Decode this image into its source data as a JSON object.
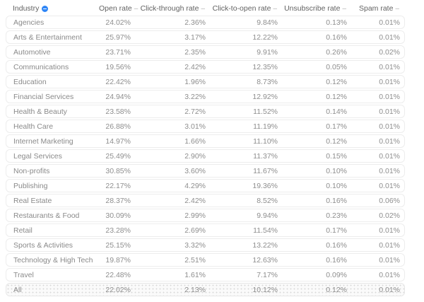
{
  "chart_data": {
    "type": "table",
    "columns": [
      "Industry",
      "Open rate",
      "Click-through rate",
      "Click-to-open rate",
      "Unsubscribe rate",
      "Spam rate"
    ],
    "rows": [
      [
        "Agencies",
        "24.02%",
        "2.36%",
        "9.84%",
        "0.13%",
        "0.01%"
      ],
      [
        "Arts & Entertainment",
        "25.97%",
        "3.17%",
        "12.22%",
        "0.16%",
        "0.01%"
      ],
      [
        "Automotive",
        "23.71%",
        "2.35%",
        "9.91%",
        "0.26%",
        "0.02%"
      ],
      [
        "Communications",
        "19.56%",
        "2.42%",
        "12.35%",
        "0.05%",
        "0.01%"
      ],
      [
        "Education",
        "22.42%",
        "1.96%",
        "8.73%",
        "0.12%",
        "0.01%"
      ],
      [
        "Financial Services",
        "24.94%",
        "3.22%",
        "12.92%",
        "0.12%",
        "0.01%"
      ],
      [
        "Health & Beauty",
        "23.58%",
        "2.72%",
        "11.52%",
        "0.14%",
        "0.01%"
      ],
      [
        "Health Care",
        "26.88%",
        "3.01%",
        "11.19%",
        "0.17%",
        "0.01%"
      ],
      [
        "Internet Marketing",
        "14.97%",
        "1.66%",
        "11.10%",
        "0.12%",
        "0.01%"
      ],
      [
        "Legal Services",
        "25.49%",
        "2.90%",
        "11.37%",
        "0.15%",
        "0.01%"
      ],
      [
        "Non-profits",
        "30.85%",
        "3.60%",
        "11.67%",
        "0.10%",
        "0.01%"
      ],
      [
        "Publishing",
        "22.17%",
        "4.29%",
        "19.36%",
        "0.10%",
        "0.01%"
      ],
      [
        "Real Estate",
        "28.37%",
        "2.42%",
        "8.52%",
        "0.16%",
        "0.06%"
      ],
      [
        "Restaurants & Food",
        "30.09%",
        "2.99%",
        "9.94%",
        "0.23%",
        "0.02%"
      ],
      [
        "Retail",
        "23.28%",
        "2.69%",
        "11.54%",
        "0.17%",
        "0.01%"
      ],
      [
        "Sports & Activities",
        "25.15%",
        "3.32%",
        "13.22%",
        "0.16%",
        "0.01%"
      ],
      [
        "Technology & High Tech",
        "19.87%",
        "2.51%",
        "12.63%",
        "0.16%",
        "0.01%"
      ],
      [
        "Travel",
        "22.48%",
        "1.61%",
        "7.17%",
        "0.09%",
        "0.01%"
      ]
    ],
    "summary_row": [
      "All",
      "22.02%",
      "2.13%",
      "10.12%",
      "0.12%",
      "0.01%"
    ]
  },
  "header": {
    "sort_indicator": "–"
  },
  "icons": {
    "industry_badge": "circle-dash-icon"
  },
  "colors": {
    "accent_blue": "#2f86f6",
    "header_text": "#626262",
    "cell_text": "#8e8e8e",
    "row_border": "#ededed",
    "summary_dot": "#d9d9d9"
  }
}
